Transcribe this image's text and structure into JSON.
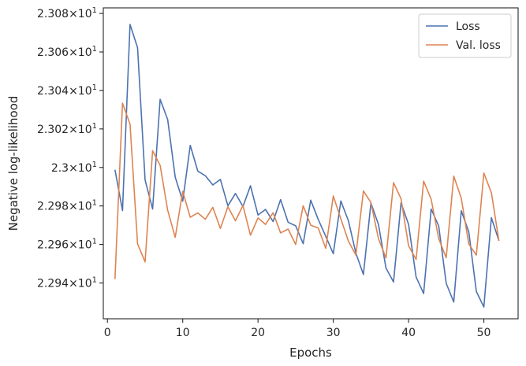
{
  "chart_data": {
    "type": "line",
    "xlabel": "Epochs",
    "ylabel": "Negative log-likelihood",
    "xlim": [
      -0.55,
      54.55
    ],
    "ylim": [
      22.9214,
      23.0829
    ],
    "x_ticks": [
      0,
      10,
      20,
      30,
      40,
      50
    ],
    "y_ticks": [
      {
        "value": 22.94,
        "mantissa": "2.294",
        "base": "10",
        "exp": "1"
      },
      {
        "value": 22.96,
        "mantissa": "2.296",
        "base": "10",
        "exp": "1"
      },
      {
        "value": 22.98,
        "mantissa": "2.298",
        "base": "10",
        "exp": "1"
      },
      {
        "value": 23.0,
        "mantissa": "2.3",
        "base": "10",
        "exp": "1"
      },
      {
        "value": 23.02,
        "mantissa": "2.302",
        "base": "10",
        "exp": "1"
      },
      {
        "value": 23.04,
        "mantissa": "2.304",
        "base": "10",
        "exp": "1"
      },
      {
        "value": 23.06,
        "mantissa": "2.306",
        "base": "10",
        "exp": "1"
      },
      {
        "value": 23.08,
        "mantissa": "2.308",
        "base": "10",
        "exp": "1"
      }
    ],
    "grid": false,
    "legend_position": "top-right",
    "x": [
      1,
      2,
      3,
      4,
      5,
      6,
      7,
      8,
      9,
      10,
      11,
      12,
      13,
      14,
      15,
      16,
      17,
      18,
      19,
      20,
      21,
      22,
      23,
      24,
      25,
      26,
      27,
      28,
      29,
      30,
      31,
      32,
      33,
      34,
      35,
      36,
      37,
      38,
      39,
      40,
      41,
      42,
      43,
      44,
      45,
      46,
      47,
      48,
      49,
      50,
      51,
      52
    ],
    "series": [
      {
        "name": "Loss",
        "color": "#4c72b0",
        "values": [
          22.9988,
          22.9776,
          23.0743,
          23.0622,
          22.9935,
          22.9784,
          23.0354,
          23.0249,
          22.995,
          22.9825,
          23.0115,
          22.9981,
          22.9957,
          22.9909,
          22.9938,
          22.9801,
          22.9865,
          22.9797,
          22.9905,
          22.9753,
          22.9782,
          22.9719,
          22.9833,
          22.9715,
          22.9697,
          22.9604,
          22.983,
          22.973,
          22.9642,
          22.9552,
          22.9826,
          22.9724,
          22.9555,
          22.9444,
          22.9815,
          22.9704,
          22.9477,
          22.9405,
          22.9816,
          22.9704,
          22.9431,
          22.9345,
          22.9784,
          22.9696,
          22.9398,
          22.9301,
          22.9775,
          22.9665,
          22.9356,
          22.9275,
          22.9739,
          22.962
        ]
      },
      {
        "name": "Val. loss",
        "color": "#dd8452",
        "values": [
          22.942,
          23.0334,
          23.0225,
          22.9603,
          22.9509,
          23.0087,
          23.0011,
          22.9778,
          22.9637,
          22.9876,
          22.9741,
          22.9764,
          22.9731,
          22.9793,
          22.9683,
          22.9796,
          22.9723,
          22.9802,
          22.9648,
          22.9738,
          22.9704,
          22.9765,
          22.966,
          22.968,
          22.96,
          22.9801,
          22.97,
          22.9685,
          22.958,
          22.9852,
          22.9733,
          22.9618,
          22.9545,
          22.9878,
          22.9818,
          22.963,
          22.953,
          22.9921,
          22.9837,
          22.9593,
          22.9522,
          22.9929,
          22.9835,
          22.963,
          22.9531,
          22.9955,
          22.984,
          22.9602,
          22.9545,
          22.9971,
          22.9869,
          22.9619
        ]
      }
    ]
  }
}
